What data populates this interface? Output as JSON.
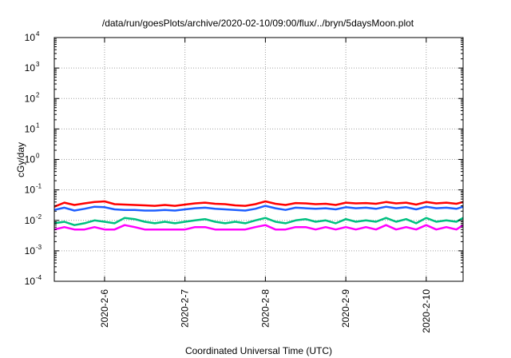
{
  "chart_data": {
    "type": "line",
    "title": "/data/run/goesPlots/archive/2020-02-10/09:00/flux/../bryn/5daysMoon.plot",
    "xlabel": "Coordinated Universal Time (UTC)",
    "ylabel": "cGy/day",
    "yscale": "log",
    "ylim": [
      0.0001,
      10000
    ],
    "yticks": [
      {
        "value": 0.0001,
        "base": "10",
        "exp": "-4"
      },
      {
        "value": 0.001,
        "base": "10",
        "exp": "-3"
      },
      {
        "value": 0.01,
        "base": "10",
        "exp": "-2"
      },
      {
        "value": 0.1,
        "base": "10",
        "exp": "-1"
      },
      {
        "value": 1,
        "base": "10",
        "exp": "0"
      },
      {
        "value": 10,
        "base": "10",
        "exp": "1"
      },
      {
        "value": 100,
        "base": "10",
        "exp": "2"
      },
      {
        "value": 1000,
        "base": "10",
        "exp": "3"
      },
      {
        "value": 10000,
        "base": "10",
        "exp": "4"
      }
    ],
    "xlim": [
      "2020-02-05T09:00",
      "2020-02-10T11:00"
    ],
    "xticks": [
      {
        "value": "2020-02-06T00:00",
        "label": "2020-2-6"
      },
      {
        "value": "2020-02-07T00:00",
        "label": "2020-2-7"
      },
      {
        "value": "2020-02-08T00:00",
        "label": "2020-2-8"
      },
      {
        "value": "2020-02-09T00:00",
        "label": "2020-2-9"
      },
      {
        "value": "2020-02-10T00:00",
        "label": "2020-2-10"
      }
    ],
    "grid": true,
    "series": [
      {
        "color": "#ff0000",
        "x": [
          "2020-02-05T09:00",
          "2020-02-05T12:00",
          "2020-02-05T15:00",
          "2020-02-05T18:00",
          "2020-02-05T21:00",
          "2020-02-06T00:00",
          "2020-02-06T03:00",
          "2020-02-06T06:00",
          "2020-02-06T09:00",
          "2020-02-06T12:00",
          "2020-02-06T15:00",
          "2020-02-06T18:00",
          "2020-02-06T21:00",
          "2020-02-07T00:00",
          "2020-02-07T03:00",
          "2020-02-07T06:00",
          "2020-02-07T09:00",
          "2020-02-07T12:00",
          "2020-02-07T15:00",
          "2020-02-07T18:00",
          "2020-02-07T21:00",
          "2020-02-08T00:00",
          "2020-02-08T03:00",
          "2020-02-08T06:00",
          "2020-02-08T09:00",
          "2020-02-08T12:00",
          "2020-02-08T15:00",
          "2020-02-08T18:00",
          "2020-02-08T21:00",
          "2020-02-09T00:00",
          "2020-02-09T03:00",
          "2020-02-09T06:00",
          "2020-02-09T09:00",
          "2020-02-09T12:00",
          "2020-02-09T15:00",
          "2020-02-09T18:00",
          "2020-02-09T21:00",
          "2020-02-10T00:00",
          "2020-02-10T03:00",
          "2020-02-10T06:00",
          "2020-02-10T09:00",
          "2020-02-10T11:00"
        ],
        "values": [
          0.028,
          0.038,
          0.032,
          0.036,
          0.04,
          0.042,
          0.034,
          0.033,
          0.032,
          0.031,
          0.03,
          0.032,
          0.03,
          0.033,
          0.036,
          0.038,
          0.035,
          0.034,
          0.031,
          0.03,
          0.034,
          0.042,
          0.035,
          0.032,
          0.037,
          0.036,
          0.034,
          0.035,
          0.032,
          0.038,
          0.036,
          0.037,
          0.035,
          0.04,
          0.036,
          0.038,
          0.033,
          0.04,
          0.036,
          0.038,
          0.035,
          0.04
        ]
      },
      {
        "color": "#1f5fff",
        "x": [
          "2020-02-05T09:00",
          "2020-02-05T12:00",
          "2020-02-05T15:00",
          "2020-02-05T18:00",
          "2020-02-05T21:00",
          "2020-02-06T00:00",
          "2020-02-06T03:00",
          "2020-02-06T06:00",
          "2020-02-06T09:00",
          "2020-02-06T12:00",
          "2020-02-06T15:00",
          "2020-02-06T18:00",
          "2020-02-06T21:00",
          "2020-02-07T00:00",
          "2020-02-07T03:00",
          "2020-02-07T06:00",
          "2020-02-07T09:00",
          "2020-02-07T12:00",
          "2020-02-07T15:00",
          "2020-02-07T18:00",
          "2020-02-07T21:00",
          "2020-02-08T00:00",
          "2020-02-08T03:00",
          "2020-02-08T06:00",
          "2020-02-08T09:00",
          "2020-02-08T12:00",
          "2020-02-08T15:00",
          "2020-02-08T18:00",
          "2020-02-08T21:00",
          "2020-02-09T00:00",
          "2020-02-09T03:00",
          "2020-02-09T06:00",
          "2020-02-09T09:00",
          "2020-02-09T12:00",
          "2020-02-09T15:00",
          "2020-02-09T18:00",
          "2020-02-09T21:00",
          "2020-02-10T00:00",
          "2020-02-10T03:00",
          "2020-02-10T06:00",
          "2020-02-10T09:00",
          "2020-02-10T11:00"
        ],
        "values": [
          0.022,
          0.026,
          0.021,
          0.024,
          0.028,
          0.027,
          0.023,
          0.022,
          0.022,
          0.021,
          0.021,
          0.022,
          0.021,
          0.023,
          0.025,
          0.026,
          0.024,
          0.023,
          0.022,
          0.021,
          0.024,
          0.03,
          0.025,
          0.022,
          0.026,
          0.025,
          0.024,
          0.025,
          0.023,
          0.027,
          0.025,
          0.026,
          0.024,
          0.028,
          0.025,
          0.027,
          0.023,
          0.028,
          0.025,
          0.026,
          0.024,
          0.028
        ]
      },
      {
        "color": "#00c080",
        "x": [
          "2020-02-05T09:00",
          "2020-02-05T12:00",
          "2020-02-05T15:00",
          "2020-02-05T18:00",
          "2020-02-05T21:00",
          "2020-02-06T00:00",
          "2020-02-06T03:00",
          "2020-02-06T06:00",
          "2020-02-06T09:00",
          "2020-02-06T12:00",
          "2020-02-06T15:00",
          "2020-02-06T18:00",
          "2020-02-06T21:00",
          "2020-02-07T00:00",
          "2020-02-07T03:00",
          "2020-02-07T06:00",
          "2020-02-07T09:00",
          "2020-02-07T12:00",
          "2020-02-07T15:00",
          "2020-02-07T18:00",
          "2020-02-07T21:00",
          "2020-02-08T00:00",
          "2020-02-08T03:00",
          "2020-02-08T06:00",
          "2020-02-08T09:00",
          "2020-02-08T12:00",
          "2020-02-08T15:00",
          "2020-02-08T18:00",
          "2020-02-08T21:00",
          "2020-02-09T00:00",
          "2020-02-09T03:00",
          "2020-02-09T06:00",
          "2020-02-09T09:00",
          "2020-02-09T12:00",
          "2020-02-09T15:00",
          "2020-02-09T18:00",
          "2020-02-09T21:00",
          "2020-02-10T00:00",
          "2020-02-10T03:00",
          "2020-02-10T06:00",
          "2020-02-10T09:00",
          "2020-02-10T11:00"
        ],
        "values": [
          0.008,
          0.009,
          0.007,
          0.008,
          0.01,
          0.009,
          0.008,
          0.012,
          0.011,
          0.009,
          0.008,
          0.009,
          0.008,
          0.009,
          0.01,
          0.011,
          0.009,
          0.008,
          0.009,
          0.008,
          0.01,
          0.012,
          0.009,
          0.008,
          0.01,
          0.011,
          0.009,
          0.01,
          0.008,
          0.011,
          0.009,
          0.01,
          0.009,
          0.012,
          0.009,
          0.011,
          0.008,
          0.012,
          0.009,
          0.01,
          0.009,
          0.012
        ]
      },
      {
        "color": "#ff00ff",
        "x": [
          "2020-02-05T09:00",
          "2020-02-05T12:00",
          "2020-02-05T15:00",
          "2020-02-05T18:00",
          "2020-02-05T21:00",
          "2020-02-06T00:00",
          "2020-02-06T03:00",
          "2020-02-06T06:00",
          "2020-02-06T09:00",
          "2020-02-06T12:00",
          "2020-02-06T15:00",
          "2020-02-06T18:00",
          "2020-02-06T21:00",
          "2020-02-07T00:00",
          "2020-02-07T03:00",
          "2020-02-07T06:00",
          "2020-02-07T09:00",
          "2020-02-07T12:00",
          "2020-02-07T15:00",
          "2020-02-07T18:00",
          "2020-02-07T21:00",
          "2020-02-08T00:00",
          "2020-02-08T03:00",
          "2020-02-08T06:00",
          "2020-02-08T09:00",
          "2020-02-08T12:00",
          "2020-02-08T15:00",
          "2020-02-08T18:00",
          "2020-02-08T21:00",
          "2020-02-09T00:00",
          "2020-02-09T03:00",
          "2020-02-09T06:00",
          "2020-02-09T09:00",
          "2020-02-09T12:00",
          "2020-02-09T15:00",
          "2020-02-09T18:00",
          "2020-02-09T21:00",
          "2020-02-10T00:00",
          "2020-02-10T03:00",
          "2020-02-10T06:00",
          "2020-02-10T09:00",
          "2020-02-10T11:00"
        ],
        "values": [
          0.005,
          0.006,
          0.005,
          0.005,
          0.006,
          0.005,
          0.005,
          0.007,
          0.006,
          0.005,
          0.005,
          0.005,
          0.005,
          0.005,
          0.006,
          0.006,
          0.005,
          0.005,
          0.005,
          0.005,
          0.006,
          0.007,
          0.005,
          0.005,
          0.006,
          0.006,
          0.005,
          0.006,
          0.005,
          0.006,
          0.005,
          0.006,
          0.005,
          0.007,
          0.005,
          0.006,
          0.005,
          0.007,
          0.005,
          0.006,
          0.005,
          0.007
        ]
      }
    ]
  }
}
